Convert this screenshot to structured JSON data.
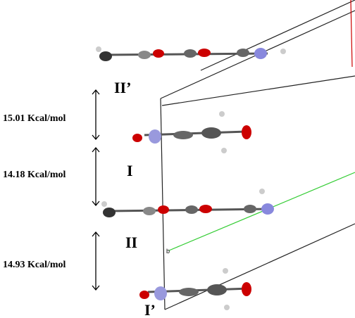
{
  "energies": [
    "15.01 Kcal/mol",
    "14.18 Kcal/mol",
    "14.93 Kcal/mol"
  ],
  "molecules": [
    "II’",
    "I",
    "II",
    "I’"
  ],
  "axis_label": "b"
}
